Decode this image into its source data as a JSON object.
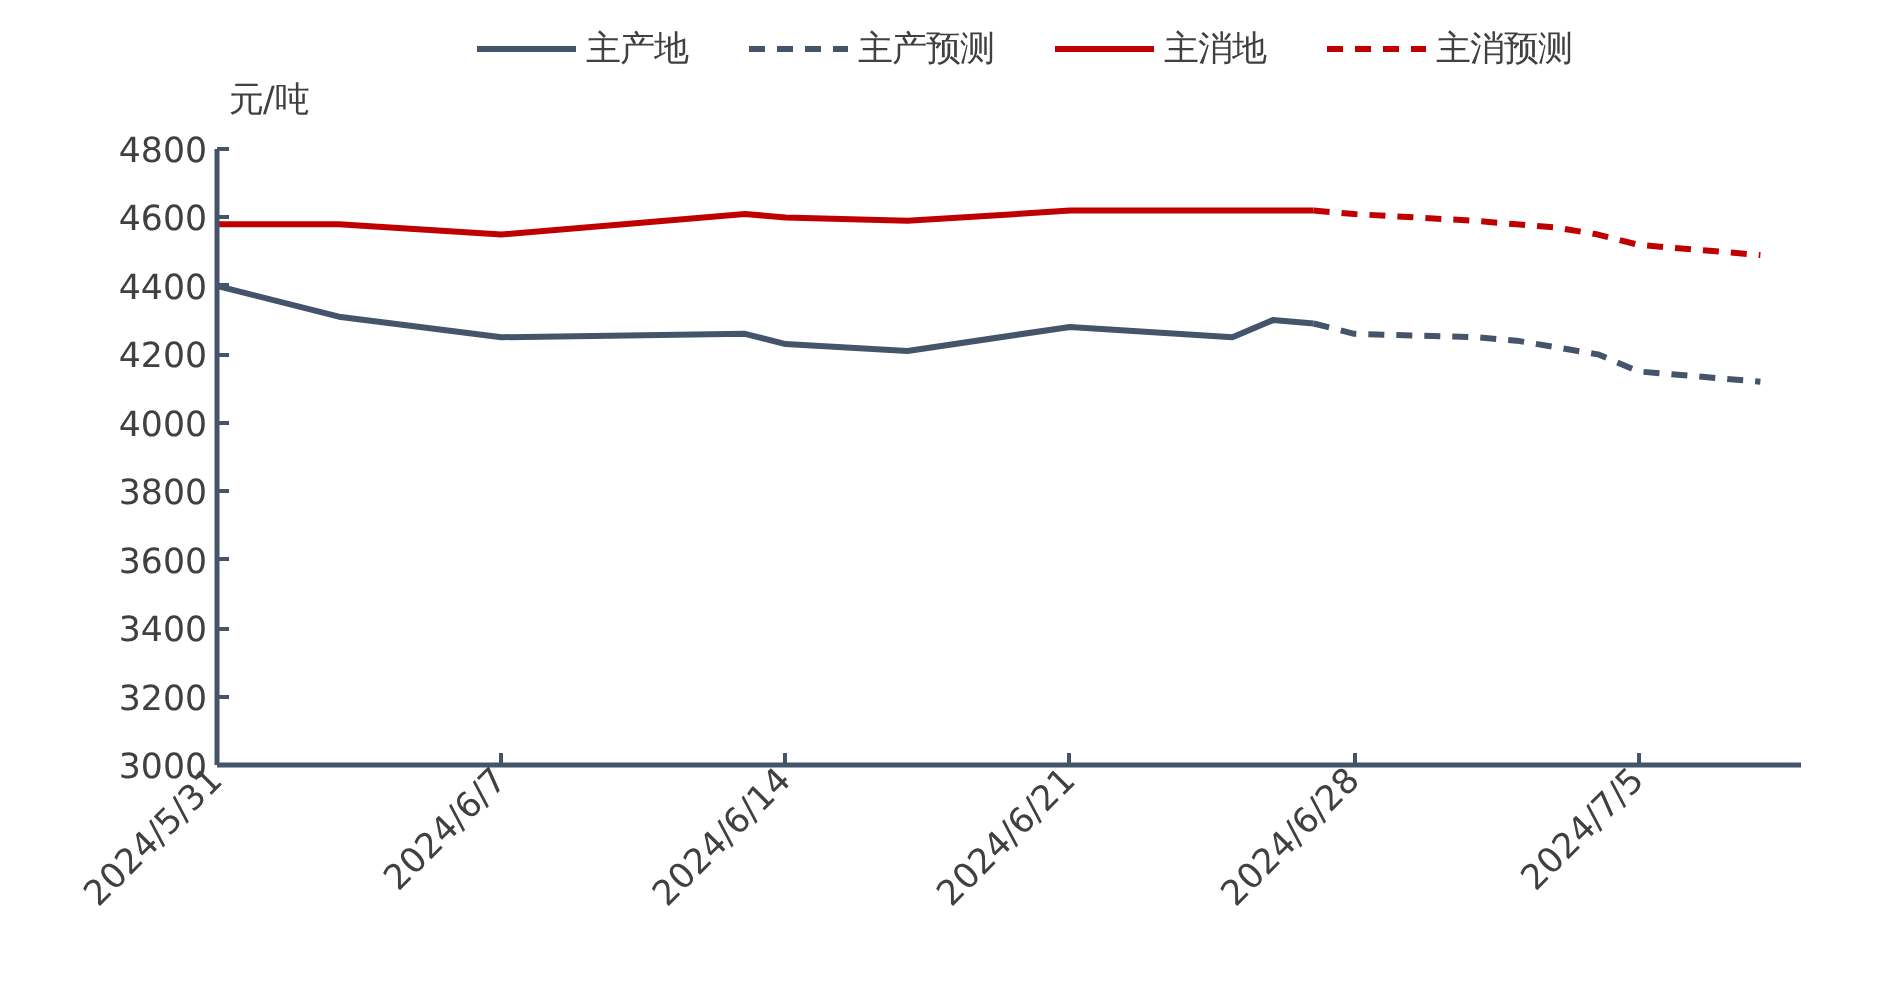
{
  "chart_data": {
    "type": "line",
    "ylabel": "元/吨",
    "xlim": [
      "2024-05-31",
      "2024-07-09"
    ],
    "ylim": [
      3000,
      4800
    ],
    "yticks": [
      3000,
      3200,
      3400,
      3600,
      3800,
      4000,
      4200,
      4400,
      4600,
      4800
    ],
    "xticks": [
      {
        "value": "2024-05-31",
        "label": "2024/5/31"
      },
      {
        "value": "2024-06-07",
        "label": "2024/6/7"
      },
      {
        "value": "2024-06-14",
        "label": "2024/6/14"
      },
      {
        "value": "2024-06-21",
        "label": "2024/6/21"
      },
      {
        "value": "2024-06-28",
        "label": "2024/6/28"
      },
      {
        "value": "2024-07-05",
        "label": "2024/7/5"
      }
    ],
    "grid": false,
    "legend": "top",
    "marker": "none",
    "series": [
      {
        "name": "主产地",
        "color": "#44546a",
        "line_style": "solid",
        "x": [
          "2024-05-31",
          "2024-06-03",
          "2024-06-05",
          "2024-06-07",
          "2024-06-13",
          "2024-06-14",
          "2024-06-17",
          "2024-06-21",
          "2024-06-25",
          "2024-06-26",
          "2024-06-27"
        ],
        "values": [
          4400,
          4310,
          4280,
          4250,
          4260,
          4230,
          4210,
          4280,
          4250,
          4300,
          4290
        ]
      },
      {
        "name": "主产预测",
        "color": "#44546a",
        "line_style": "dashed",
        "x": [
          "2024-06-27",
          "2024-06-28",
          "2024-07-01",
          "2024-07-02",
          "2024-07-03",
          "2024-07-04",
          "2024-07-05",
          "2024-07-08"
        ],
        "values": [
          4290,
          4260,
          4250,
          4240,
          4220,
          4200,
          4150,
          4120
        ]
      },
      {
        "name": "主消地",
        "color": "#c00000",
        "line_style": "solid",
        "x": [
          "2024-05-31",
          "2024-06-03",
          "2024-06-07",
          "2024-06-13",
          "2024-06-14",
          "2024-06-17",
          "2024-06-21",
          "2024-06-26",
          "2024-06-27"
        ],
        "values": [
          4580,
          4580,
          4550,
          4610,
          4600,
          4590,
          4620,
          4620,
          4620
        ]
      },
      {
        "name": "主消预测",
        "color": "#c00000",
        "line_style": "dashed",
        "x": [
          "2024-06-27",
          "2024-06-28",
          "2024-07-01",
          "2024-07-02",
          "2024-07-03",
          "2024-07-04",
          "2024-07-05",
          "2024-07-08"
        ],
        "values": [
          4620,
          4610,
          4590,
          4580,
          4570,
          4550,
          4520,
          4490
        ]
      }
    ]
  }
}
